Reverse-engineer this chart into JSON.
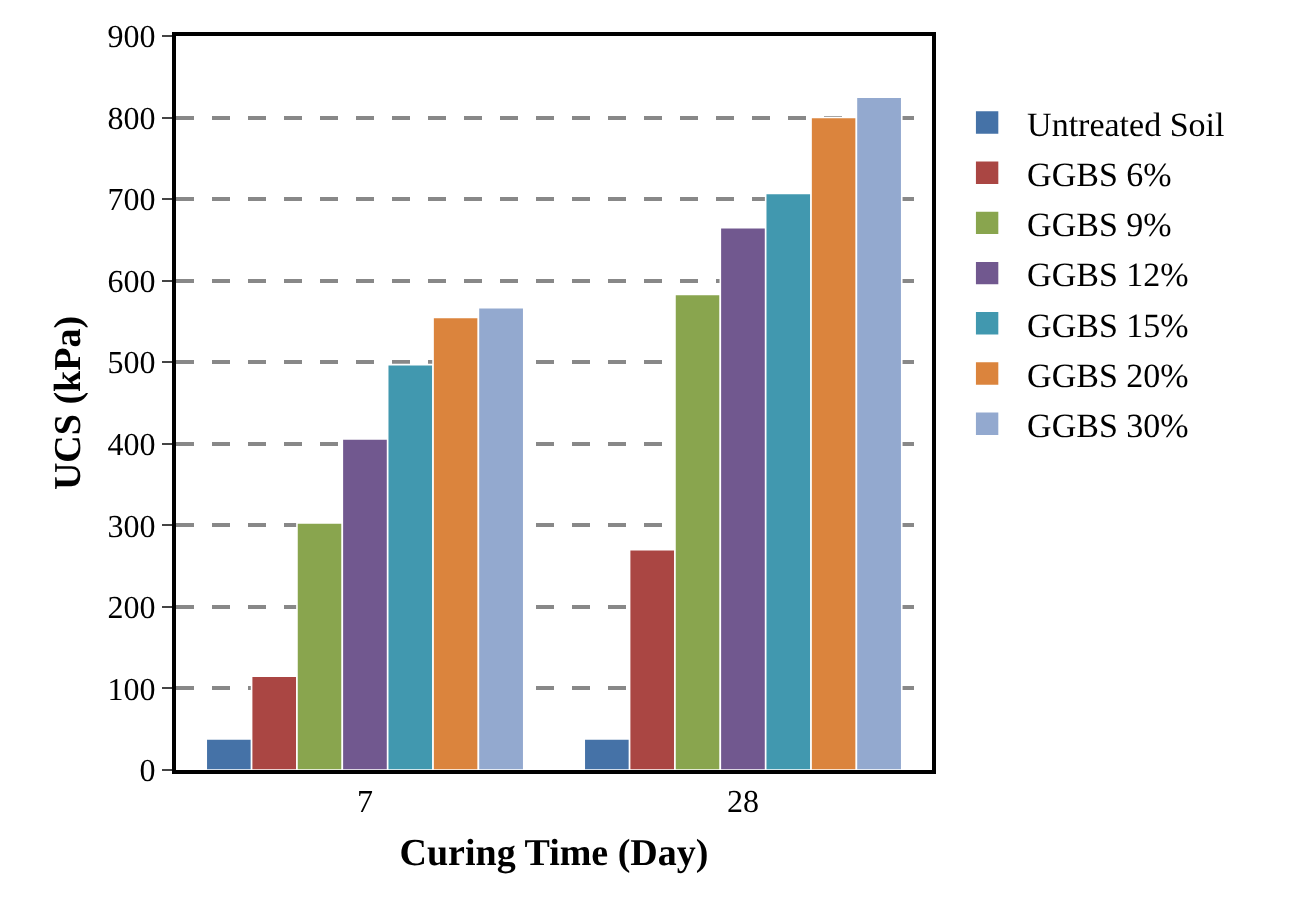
{
  "chart_data": {
    "type": "bar",
    "xlabel": "Curing Time (Day)",
    "ylabel": "UCS (kPa)",
    "categories": [
      "7",
      "28"
    ],
    "series": [
      {
        "name": "Untreated Soil",
        "color": "#4572a7",
        "values": [
          38,
          38
        ]
      },
      {
        "name": "GGBS 6%",
        "color": "#aa4643",
        "values": [
          115,
          270
        ]
      },
      {
        "name": "GGBS 9%",
        "color": "#89a54e",
        "values": [
          303,
          583
        ]
      },
      {
        "name": "GGBS 12%",
        "color": "#71588f",
        "values": [
          406,
          665
        ]
      },
      {
        "name": "GGBS 15%",
        "color": "#4198af",
        "values": [
          497,
          707
        ]
      },
      {
        "name": "GGBS 20%",
        "color": "#db843d",
        "values": [
          555,
          800
        ]
      },
      {
        "name": "GGBS 30%",
        "color": "#93a9cf",
        "values": [
          567,
          825
        ]
      }
    ],
    "ylim": [
      0,
      900
    ],
    "yticks": [
      0,
      100,
      200,
      300,
      400,
      500,
      600,
      700,
      800,
      900
    ],
    "grid": "y",
    "legend": "right"
  }
}
